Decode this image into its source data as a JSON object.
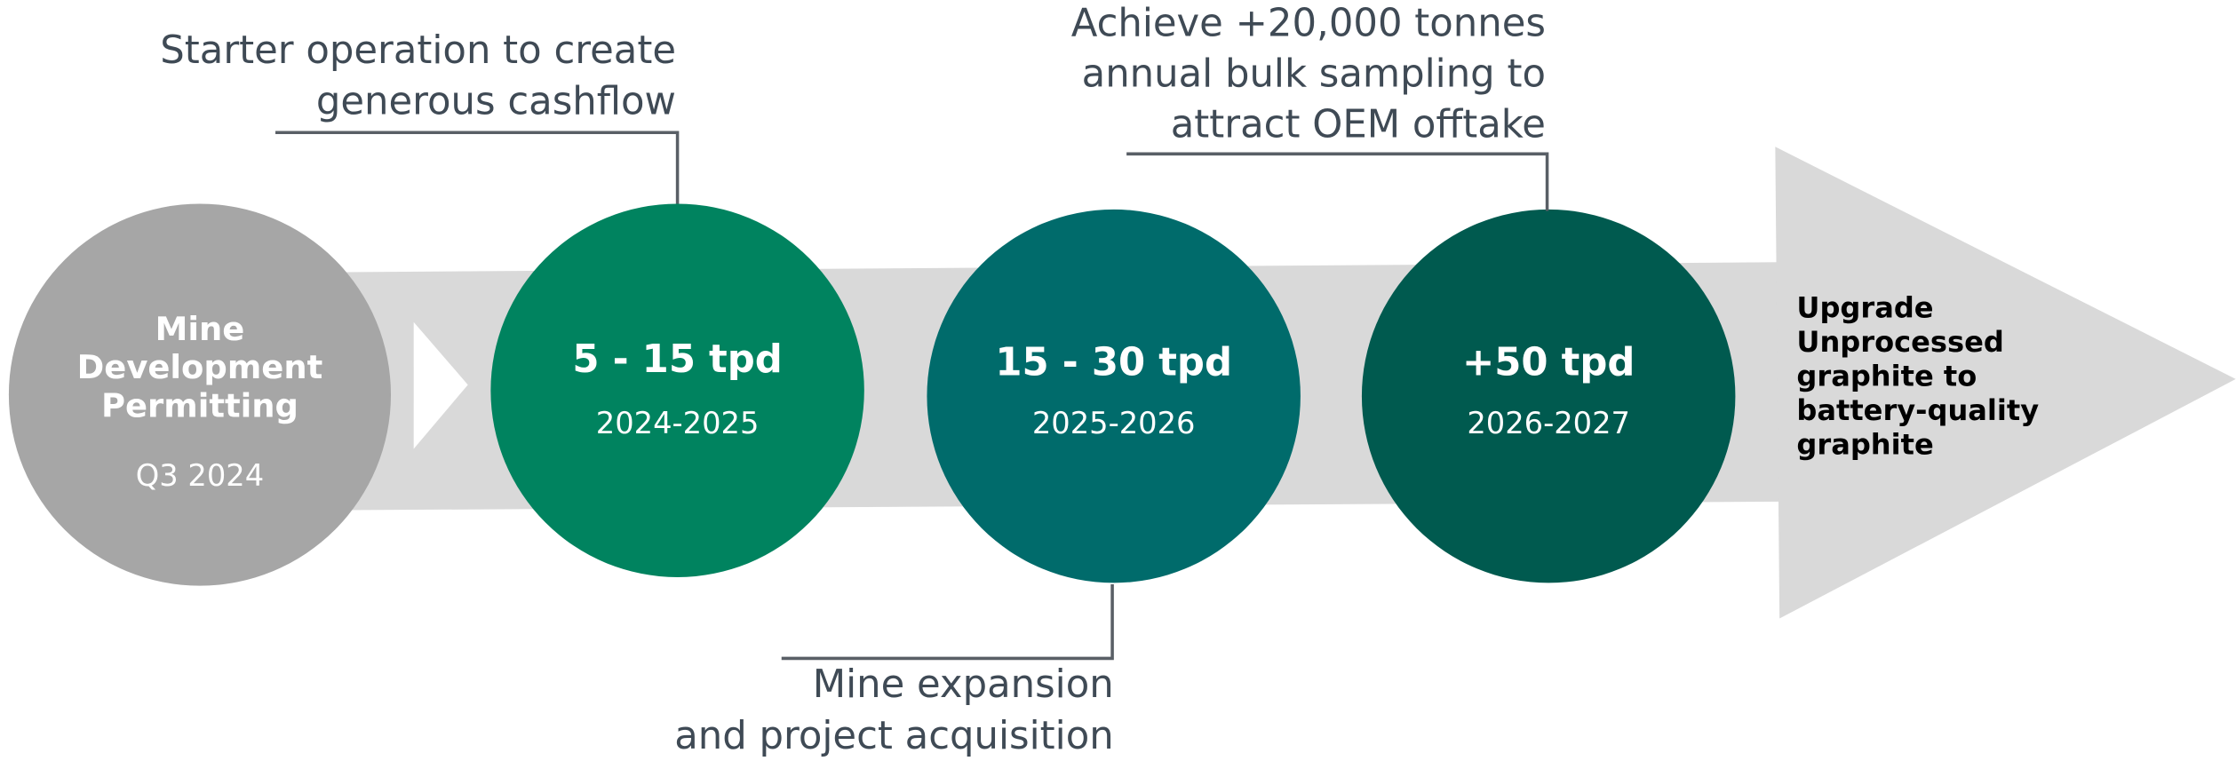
{
  "stages": [
    {
      "title_lines": [
        "Mine",
        "Development",
        "Permitting"
      ],
      "subtitle": "Q3 2024"
    },
    {
      "title_lines": [
        "5 - 15 tpd"
      ],
      "subtitle": "2024-2025"
    },
    {
      "title_lines": [
        "15 - 30 tpd"
      ],
      "subtitle": "2025-2026"
    },
    {
      "title_lines": [
        "+50 tpd"
      ],
      "subtitle": "2026-2027"
    }
  ],
  "callouts": [
    {
      "lines": [
        "Starter operation to create",
        "generous cashflow"
      ]
    },
    {
      "lines": [
        "Achieve +20,000 tonnes",
        "annual bulk sampling to",
        "attract OEM offtake"
      ]
    },
    {
      "lines": [
        "Mine expansion",
        "and project acquisition"
      ]
    }
  ],
  "goal": {
    "lines": [
      "Upgrade",
      "Unprocessed",
      "graphite to",
      "battery-quality",
      "graphite"
    ]
  }
}
